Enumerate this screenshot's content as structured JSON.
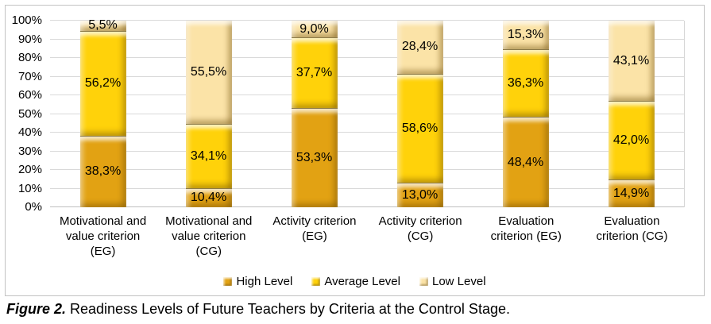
{
  "caption": {
    "label": "Figure 2.",
    "text": "Readiness Levels of Future Teachers by Criteria at the Control Stage."
  },
  "chart_data": {
    "type": "bar",
    "stacked": true,
    "percent_stacked": true,
    "title": "",
    "xlabel": "",
    "ylabel": "",
    "ylim": [
      0,
      100
    ],
    "grid": true,
    "legend_position": "bottom",
    "gridline_color": "#d9d9d9",
    "y_ticks": [
      "0%",
      "10%",
      "20%",
      "30%",
      "40%",
      "50%",
      "60%",
      "70%",
      "80%",
      "90%",
      "100%"
    ],
    "categories": [
      "Motivational and value criterion (EG)",
      "Motivational and value criterion (CG)",
      "Activity criterion (EG)",
      "Activity criterion (CG)",
      "Evaluation criterion (EG)",
      "Evaluation criterion (CG)"
    ],
    "series": [
      {
        "name": "High Level",
        "color": "#e2a213",
        "values": [
          38.3,
          10.4,
          53.3,
          13.0,
          48.4,
          14.9
        ],
        "labels": [
          "38,3%",
          "10,4%",
          "53,3%",
          "13,0%",
          "48,4%",
          "14,9%"
        ]
      },
      {
        "name": "Average Level",
        "color": "#ffd20a",
        "values": [
          56.2,
          34.1,
          37.7,
          58.6,
          36.3,
          42.0
        ],
        "labels": [
          "56,2%",
          "34,1%",
          "37,7%",
          "58,6%",
          "36,3%",
          "42,0%"
        ]
      },
      {
        "name": "Low Level",
        "color": "#fbe3a7",
        "values": [
          5.5,
          55.5,
          9.0,
          28.4,
          15.3,
          43.1
        ],
        "labels": [
          "5,5%",
          "55,5%",
          "9,0%",
          "28,4%",
          "15,3%",
          "43,1%"
        ]
      }
    ]
  }
}
